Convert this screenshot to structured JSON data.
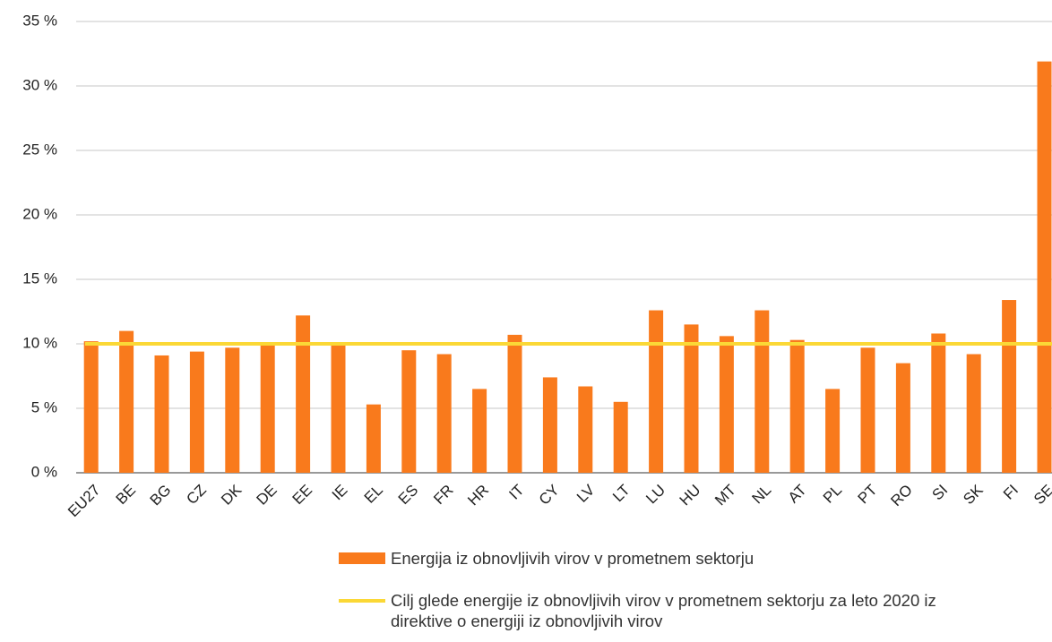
{
  "chart_data": {
    "type": "bar",
    "categories": [
      "EU27",
      "BE",
      "BG",
      "CZ",
      "DK",
      "DE",
      "EE",
      "IE",
      "EL",
      "ES",
      "FR",
      "HR",
      "IT",
      "CY",
      "LV",
      "LT",
      "LU",
      "HU",
      "MT",
      "NL",
      "AT",
      "PL",
      "PT",
      "RO",
      "SI",
      "SK",
      "FI",
      "SE"
    ],
    "series": [
      {
        "name": "Energija iz obnovljivih virov v prometnem sektorju",
        "type": "bar",
        "color": "#f97a1c",
        "values": [
          10.2,
          11.0,
          9.1,
          9.4,
          9.7,
          10.0,
          12.2,
          10.1,
          5.3,
          9.5,
          9.2,
          6.5,
          10.7,
          7.4,
          6.7,
          5.5,
          12.6,
          11.5,
          10.6,
          12.6,
          10.3,
          6.5,
          9.7,
          8.5,
          10.8,
          9.2,
          13.4,
          31.9
        ]
      },
      {
        "name": "Cilj glede energije iz obnovljivih virov v prometnem sektorju za leto 2020 iz direktive o energiji iz obnovljivih virov",
        "type": "line",
        "color": "#fbd836",
        "values": [
          10,
          10,
          10,
          10,
          10,
          10,
          10,
          10,
          10,
          10,
          10,
          10,
          10,
          10,
          10,
          10,
          10,
          10,
          10,
          10,
          10,
          10,
          10,
          10,
          10,
          10,
          10,
          10
        ]
      }
    ],
    "ylim": [
      0,
      35
    ],
    "yticks": [
      {
        "value": 0,
        "label": "0 %"
      },
      {
        "value": 5,
        "label": "5 %"
      },
      {
        "value": 10,
        "label": "10 %"
      },
      {
        "value": 15,
        "label": "15 %"
      },
      {
        "value": 20,
        "label": "20 %"
      },
      {
        "value": 25,
        "label": "25 %"
      },
      {
        "value": 30,
        "label": "30 %"
      },
      {
        "value": 35,
        "label": "35 %"
      }
    ],
    "grid": true,
    "legend": "bottom"
  }
}
